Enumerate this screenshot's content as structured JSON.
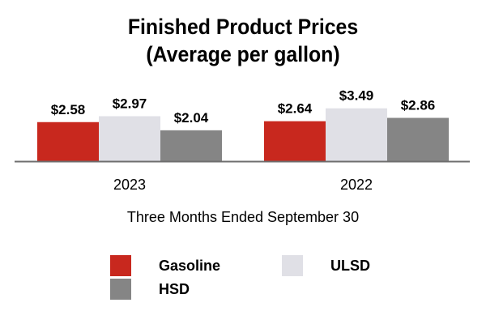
{
  "chart_data": {
    "type": "bar",
    "title_lines": [
      "Finished Product Prices",
      "(Average per gallon)"
    ],
    "categories": [
      "2023",
      "2022"
    ],
    "series": [
      {
        "name": "Gasoline",
        "values": [
          2.58,
          2.64
        ],
        "labels": [
          "$2.58",
          "$2.64"
        ],
        "color": "#c8281e"
      },
      {
        "name": "ULSD",
        "values": [
          2.97,
          3.49
        ],
        "labels": [
          "$2.97",
          "$3.49"
        ],
        "color": "#e0e0e6"
      },
      {
        "name": "HSD",
        "values": [
          2.04,
          2.86
        ],
        "labels": [
          "$2.04",
          "$2.86"
        ],
        "color": "#858585"
      }
    ],
    "xlabel": "Three Months Ended September 30",
    "ylabel": "",
    "grid": false,
    "legend_position": "bottom",
    "baseline_color": "#6e6e6e"
  }
}
